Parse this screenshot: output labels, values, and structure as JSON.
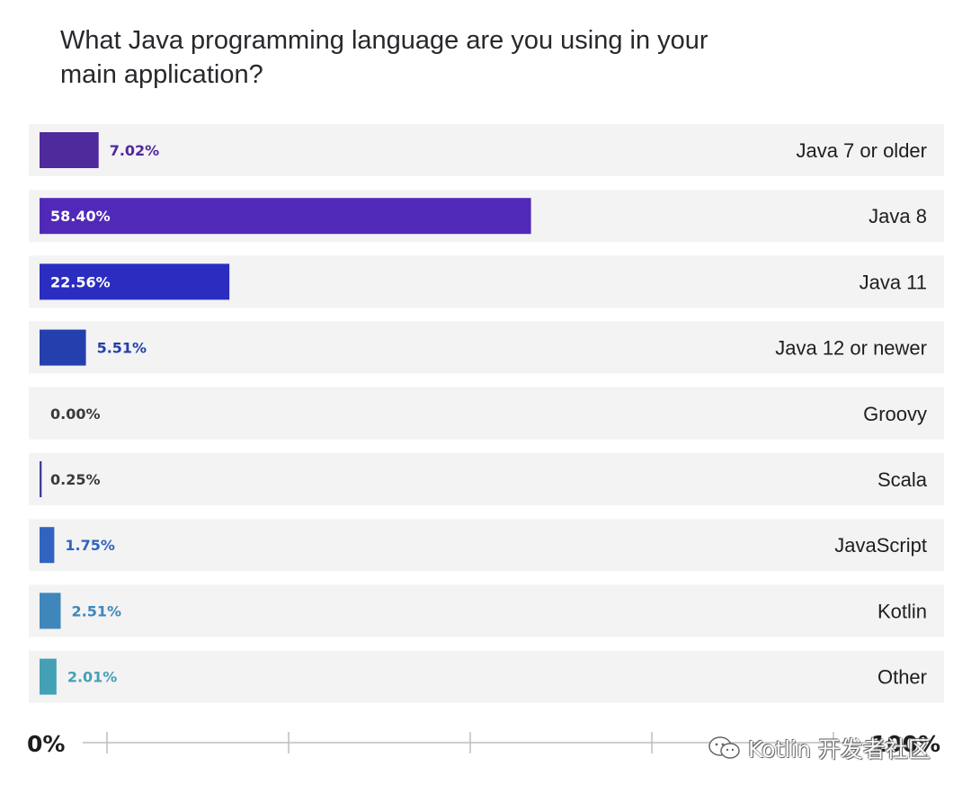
{
  "chart_data": {
    "type": "bar",
    "orientation": "horizontal",
    "title": "What Java programming language are you using in your main application?",
    "categories": [
      "Java 7 or older",
      "Java 8",
      "Java 11",
      "Java 12 or newer",
      "Groovy",
      "Scala",
      "JavaScript",
      "Kotlin",
      "Other"
    ],
    "values": [
      7.02,
      58.4,
      22.56,
      5.51,
      0.0,
      0.25,
      1.75,
      2.51,
      2.01
    ],
    "value_labels": [
      "7.02%",
      "58.40%",
      "22.56%",
      "5.51%",
      "0.00%",
      "0.25%",
      "1.75%",
      "2.51%",
      "2.01%"
    ],
    "colors": [
      "#4f2a9c",
      "#5129b8",
      "#2a2dc0",
      "#243fae",
      "#2f3fa0",
      "#3c3f9a",
      "#3064c0",
      "#3f87ba",
      "#44a0b5"
    ],
    "axis": {
      "min_label": "0%",
      "max_label": "100%",
      "xlim": [
        0,
        100
      ]
    },
    "grid": false
  },
  "watermark": {
    "text": "Kotlin 开发者社区"
  }
}
